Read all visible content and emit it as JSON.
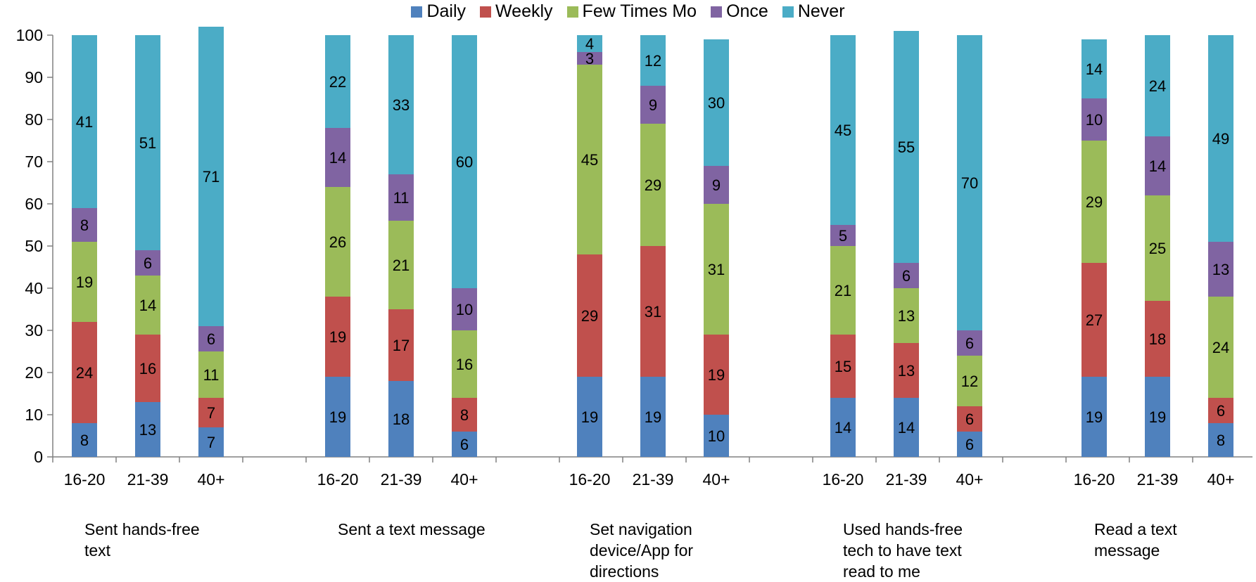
{
  "chart_data": {
    "type": "bar",
    "stacked": true,
    "ylim": [
      0,
      100
    ],
    "yticks": [
      0,
      10,
      20,
      30,
      40,
      50,
      60,
      70,
      80,
      90,
      100
    ],
    "legend_position": "top-center",
    "grid": false,
    "series": [
      {
        "name": "Daily",
        "color": "#4F81BD"
      },
      {
        "name": "Weekly",
        "color": "#C0504D"
      },
      {
        "name": "Few Times Mo",
        "color": "#9BBB59"
      },
      {
        "name": "Once",
        "color": "#8064A2"
      },
      {
        "name": "Never",
        "color": "#4BACC6"
      }
    ],
    "groups": [
      {
        "label": "Sent hands-free text",
        "bars": [
          {
            "category": "16-20",
            "values": [
              8,
              24,
              19,
              8,
              41
            ]
          },
          {
            "category": "21-39",
            "values": [
              13,
              16,
              14,
              6,
              51
            ]
          },
          {
            "category": "40+",
            "values": [
              7,
              7,
              11,
              6,
              71
            ]
          }
        ]
      },
      {
        "label": "Sent a text message",
        "bars": [
          {
            "category": "16-20",
            "values": [
              19,
              19,
              26,
              14,
              22
            ]
          },
          {
            "category": "21-39",
            "values": [
              18,
              17,
              21,
              11,
              33
            ]
          },
          {
            "category": "40+",
            "values": [
              6,
              8,
              16,
              10,
              60
            ]
          }
        ]
      },
      {
        "label": "Set navigation device/App for directions",
        "bars": [
          {
            "category": "16-20",
            "values": [
              19,
              29,
              45,
              3,
              4
            ]
          },
          {
            "category": "21-39",
            "values": [
              19,
              31,
              29,
              9,
              12
            ]
          },
          {
            "category": "40+",
            "values": [
              10,
              19,
              31,
              9,
              30
            ]
          }
        ]
      },
      {
        "label": "Used hands-free tech to have text read to me",
        "bars": [
          {
            "category": "16-20",
            "values": [
              14,
              15,
              21,
              5,
              45
            ]
          },
          {
            "category": "21-39",
            "values": [
              14,
              13,
              13,
              6,
              55
            ]
          },
          {
            "category": "40+",
            "values": [
              6,
              6,
              12,
              6,
              70
            ]
          }
        ]
      },
      {
        "label": "Read a text message",
        "bars": [
          {
            "category": "16-20",
            "values": [
              19,
              27,
              29,
              10,
              14
            ]
          },
          {
            "category": "21-39",
            "values": [
              19,
              18,
              25,
              14,
              24
            ]
          },
          {
            "category": "40+",
            "values": [
              8,
              6,
              24,
              13,
              49
            ]
          }
        ]
      }
    ]
  }
}
